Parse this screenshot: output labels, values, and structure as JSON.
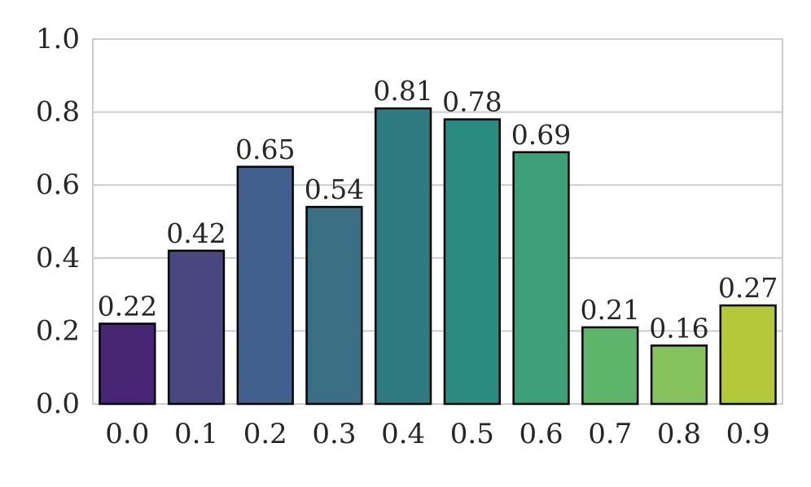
{
  "chart_data": {
    "type": "bar",
    "categories": [
      "0.0",
      "0.1",
      "0.2",
      "0.3",
      "0.4",
      "0.5",
      "0.6",
      "0.7",
      "0.8",
      "0.9"
    ],
    "values": [
      0.22,
      0.42,
      0.65,
      0.54,
      0.81,
      0.78,
      0.69,
      0.21,
      0.16,
      0.27
    ],
    "value_labels": [
      "0.22",
      "0.42",
      "0.65",
      "0.54",
      "0.81",
      "0.78",
      "0.69",
      "0.21",
      "0.16",
      "0.27"
    ],
    "colors": [
      "#482575",
      "#49477f",
      "#42608e",
      "#3a6f86",
      "#2e7b80",
      "#2a8c7f",
      "#3ea07a",
      "#5db56b",
      "#87c35c",
      "#b3c93a"
    ],
    "yticks": [
      "0.0",
      "0.2",
      "0.4",
      "0.6",
      "0.8",
      "1.0"
    ],
    "ytick_values": [
      0,
      0.2,
      0.4,
      0.6,
      0.8,
      1.0
    ],
    "ylim": [
      0,
      1.0
    ],
    "grid": "horizontal",
    "title": "",
    "xlabel": "",
    "ylabel": "",
    "legend": "none"
  }
}
